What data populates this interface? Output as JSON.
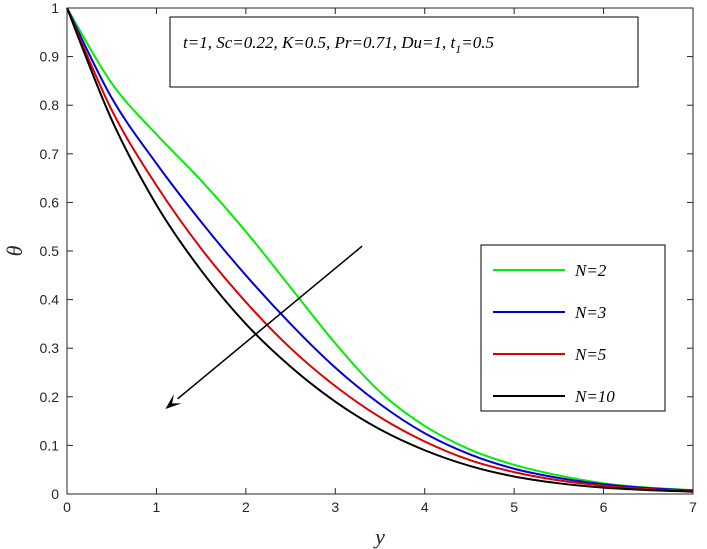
{
  "chart_data": {
    "type": "line",
    "xlabel": "y",
    "ylabel": "θ",
    "xlim": [
      0,
      7
    ],
    "ylim": [
      0,
      1
    ],
    "x_ticks": [
      "0",
      "1",
      "2",
      "3",
      "4",
      "5",
      "6",
      "7"
    ],
    "y_ticks": [
      "0",
      "0.1",
      "0.2",
      "0.3",
      "0.4",
      "0.5",
      "0.6",
      "0.7",
      "0.8",
      "0.9",
      "1"
    ],
    "grid": false,
    "legend_position": "right",
    "annotation": {
      "text_main": "t=1, Sc=0.22, K=0.5, Pr=0.71, Du=1, t",
      "text_sub": "1",
      "text_tail": "=0.5"
    },
    "arrow": {
      "from": [
        3.3,
        0.51
      ],
      "to": [
        1.1,
        0.175
      ]
    },
    "x": [
      0,
      0.5,
      1,
      1.5,
      2,
      2.5,
      3,
      3.5,
      4,
      4.5,
      5,
      5.5,
      6,
      6.5,
      7
    ],
    "series": [
      {
        "name": "N=2",
        "color": "#00ee00",
        "values": [
          1.0,
          0.845,
          0.74,
          0.645,
          0.54,
          0.425,
          0.31,
          0.21,
          0.14,
          0.092,
          0.06,
          0.038,
          0.022,
          0.013,
          0.008
        ]
      },
      {
        "name": "N=3",
        "color": "#0000dd",
        "values": [
          1.0,
          0.815,
          0.68,
          0.56,
          0.45,
          0.35,
          0.26,
          0.185,
          0.125,
          0.082,
          0.052,
          0.033,
          0.02,
          0.012,
          0.007
        ]
      },
      {
        "name": "N=5",
        "color": "#dd0000",
        "values": [
          1.0,
          0.79,
          0.635,
          0.505,
          0.395,
          0.3,
          0.222,
          0.158,
          0.108,
          0.07,
          0.045,
          0.028,
          0.017,
          0.01,
          0.006
        ]
      },
      {
        "name": "N=10",
        "color": "#000000",
        "values": [
          1.0,
          0.77,
          0.595,
          0.46,
          0.35,
          0.262,
          0.19,
          0.133,
          0.09,
          0.058,
          0.036,
          0.022,
          0.013,
          0.008,
          0.005
        ]
      }
    ]
  }
}
